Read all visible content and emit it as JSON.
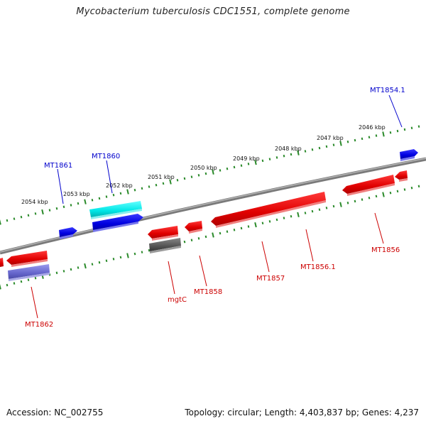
{
  "title": "Mycobacterium tuberculosis CDC1551, complete genome",
  "footer": {
    "accession": "Accession: NC_002755",
    "summary": "Topology: circular; Length: 4,403,837 bp; Genes: 4,237"
  },
  "colors": {
    "forward_gene": "#0000e6",
    "reverse_gene": "#e60000",
    "forward_label": "#0000cc",
    "reverse_label": "#cc0000",
    "rna_gene": "#00e6e6",
    "pseudo_gene": "#6666cc",
    "other_gene": "#555555",
    "backbone": "#808080",
    "tick": "#2a8a2a"
  },
  "ticks": [
    "2054 kbp",
    "2053 kbp",
    "2052 kbp",
    "2051 kbp",
    "2050 kbp",
    "2049 kbp",
    "2048 kbp",
    "2047 kbp",
    "2046 kbp"
  ],
  "genes": [
    {
      "label": "MT1854.1",
      "strand": "forward",
      "type": "cds"
    },
    {
      "label": "MT1856",
      "strand": "reverse",
      "type": "cds"
    },
    {
      "label": "MT1856.1",
      "strand": "reverse",
      "type": "cds"
    },
    {
      "label": "MT1857",
      "strand": "reverse",
      "type": "cds"
    },
    {
      "label": "MT1858",
      "strand": "reverse",
      "type": "cds"
    },
    {
      "label": "mgtC",
      "strand": "reverse",
      "type": "other"
    },
    {
      "label": "MT1860",
      "strand": "forward",
      "type": "rna"
    },
    {
      "label": "MT1861",
      "strand": "forward",
      "type": "cds"
    },
    {
      "label": "MT1862",
      "strand": "reverse",
      "type": "pseudo"
    }
  ]
}
